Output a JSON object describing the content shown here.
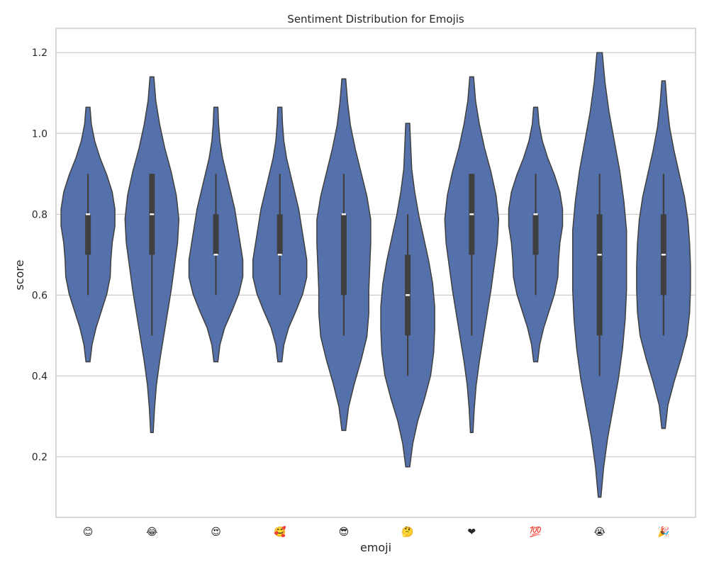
{
  "chart_data": {
    "type": "violin",
    "title": "Sentiment Distribution for Emojis",
    "xlabel": "emoji",
    "ylabel": "score",
    "ylim": [
      0.05,
      1.26
    ],
    "yticks": [
      "0.2",
      "0.4",
      "0.6",
      "0.8",
      "1.0",
      "1.2"
    ],
    "grid": true,
    "color": "#5471ab",
    "categories": [
      "😊",
      "😂",
      "😍",
      "🥰",
      "😎",
      "🤔",
      "❤",
      "💯",
      "😭",
      "🎉"
    ],
    "violins": [
      {
        "label": "😊",
        "min": 0.6,
        "q1": 0.7,
        "median": 0.8,
        "q3": 0.8,
        "max": 0.9,
        "kde_range": [
          0.435,
          1.065
        ],
        "density": [
          0.03,
          0.06,
          0.12,
          0.2,
          0.28,
          0.33,
          0.34,
          0.36,
          0.4,
          0.4,
          0.36,
          0.28,
          0.18,
          0.1,
          0.05,
          0.03
        ]
      },
      {
        "label": "😂",
        "min": 0.5,
        "q1": 0.7,
        "median": 0.8,
        "q3": 0.9,
        "max": 0.9,
        "kde_range": [
          0.26,
          1.14
        ],
        "density": [
          0.02,
          0.04,
          0.07,
          0.12,
          0.18,
          0.24,
          0.3,
          0.35,
          0.4,
          0.42,
          0.38,
          0.3,
          0.2,
          0.12,
          0.06,
          0.03
        ]
      },
      {
        "label": "😍",
        "min": 0.6,
        "q1": 0.7,
        "median": 0.7,
        "q3": 0.8,
        "max": 0.9,
        "kde_range": [
          0.435,
          1.065
        ],
        "density": [
          0.03,
          0.06,
          0.13,
          0.24,
          0.34,
          0.4,
          0.4,
          0.36,
          0.32,
          0.28,
          0.22,
          0.16,
          0.1,
          0.06,
          0.04,
          0.03
        ]
      },
      {
        "label": "🥰",
        "min": 0.6,
        "q1": 0.7,
        "median": 0.7,
        "q3": 0.8,
        "max": 0.9,
        "kde_range": [
          0.435,
          1.065
        ],
        "density": [
          0.03,
          0.06,
          0.13,
          0.24,
          0.34,
          0.4,
          0.4,
          0.36,
          0.32,
          0.28,
          0.22,
          0.16,
          0.1,
          0.06,
          0.04,
          0.03
        ]
      },
      {
        "label": "😎",
        "min": 0.5,
        "q1": 0.6,
        "median": 0.8,
        "q3": 0.8,
        "max": 0.9,
        "kde_range": [
          0.265,
          1.135
        ],
        "density": [
          0.02,
          0.05,
          0.11,
          0.18,
          0.24,
          0.26,
          0.26,
          0.27,
          0.28,
          0.28,
          0.24,
          0.18,
          0.12,
          0.07,
          0.04,
          0.02
        ]
      },
      {
        "label": "🤔",
        "min": 0.4,
        "q1": 0.5,
        "median": 0.6,
        "q3": 0.7,
        "max": 0.8,
        "kde_range": [
          0.175,
          1.025
        ],
        "density": [
          0.02,
          0.05,
          0.1,
          0.17,
          0.23,
          0.26,
          0.27,
          0.27,
          0.25,
          0.21,
          0.16,
          0.11,
          0.07,
          0.04,
          0.03,
          0.02
        ]
      },
      {
        "label": "❤",
        "min": 0.5,
        "q1": 0.7,
        "median": 0.8,
        "q3": 0.9,
        "max": 0.9,
        "kde_range": [
          0.26,
          1.14
        ],
        "density": [
          0.02,
          0.04,
          0.07,
          0.12,
          0.18,
          0.24,
          0.3,
          0.35,
          0.4,
          0.42,
          0.38,
          0.3,
          0.2,
          0.12,
          0.06,
          0.03
        ]
      },
      {
        "label": "💯",
        "min": 0.6,
        "q1": 0.7,
        "median": 0.8,
        "q3": 0.8,
        "max": 0.9,
        "kde_range": [
          0.435,
          1.065
        ],
        "density": [
          0.03,
          0.06,
          0.12,
          0.2,
          0.28,
          0.33,
          0.34,
          0.36,
          0.4,
          0.4,
          0.36,
          0.28,
          0.18,
          0.1,
          0.05,
          0.03
        ]
      },
      {
        "label": "😭",
        "min": 0.4,
        "q1": 0.5,
        "median": 0.7,
        "q3": 0.8,
        "max": 0.9,
        "kde_range": [
          0.1,
          1.2
        ],
        "density": [
          0.01,
          0.03,
          0.06,
          0.1,
          0.14,
          0.17,
          0.19,
          0.2,
          0.2,
          0.2,
          0.18,
          0.15,
          0.11,
          0.07,
          0.04,
          0.02
        ]
      },
      {
        "label": "🎉",
        "min": 0.5,
        "q1": 0.6,
        "median": 0.7,
        "q3": 0.8,
        "max": 0.9,
        "kde_range": [
          0.27,
          1.13
        ],
        "density": [
          0.02,
          0.05,
          0.12,
          0.2,
          0.27,
          0.3,
          0.31,
          0.31,
          0.3,
          0.28,
          0.24,
          0.18,
          0.12,
          0.07,
          0.04,
          0.02
        ]
      }
    ]
  }
}
